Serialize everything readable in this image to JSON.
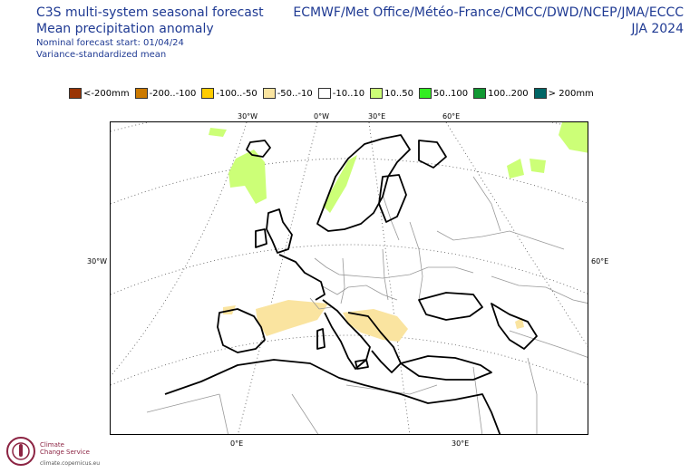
{
  "header": {
    "title_line1": "C3S multi-system seasonal forecast",
    "title_line2": "Mean precipitation anomaly",
    "nominal_start": "Nominal forecast start: 01/04/24",
    "method": "Variance-standardized mean",
    "systems": "ECMWF/Met Office/Météo-France/CMCC/DWD/NCEP/JMA/ECCC",
    "season": "JJA 2024"
  },
  "legend": [
    {
      "label": "<-200mm",
      "color": "#993404"
    },
    {
      "label": "-200..-100",
      "color": "#cc7a00"
    },
    {
      "label": "-100..-50",
      "color": "#ffcc00"
    },
    {
      "label": "-50..-10",
      "color": "#fae4a0"
    },
    {
      "label": "-10..10",
      "color": "#ffffff"
    },
    {
      "label": "10..50",
      "color": "#ccff77"
    },
    {
      "label": "50..100",
      "color": "#33ee22"
    },
    {
      "label": "100..200",
      "color": "#119933"
    },
    {
      "label": "> 200mm",
      "color": "#006666"
    }
  ],
  "axis_labels": {
    "top": [
      "30°W",
      "0°W",
      "30°E",
      "60°E"
    ],
    "left": "30°W",
    "right": "60°E",
    "bottom": [
      "0°E",
      "30°E"
    ]
  },
  "logo": {
    "name_line1": "Climate",
    "name_line2": "Change Service",
    "url": "climate.copernicus.eu"
  }
}
